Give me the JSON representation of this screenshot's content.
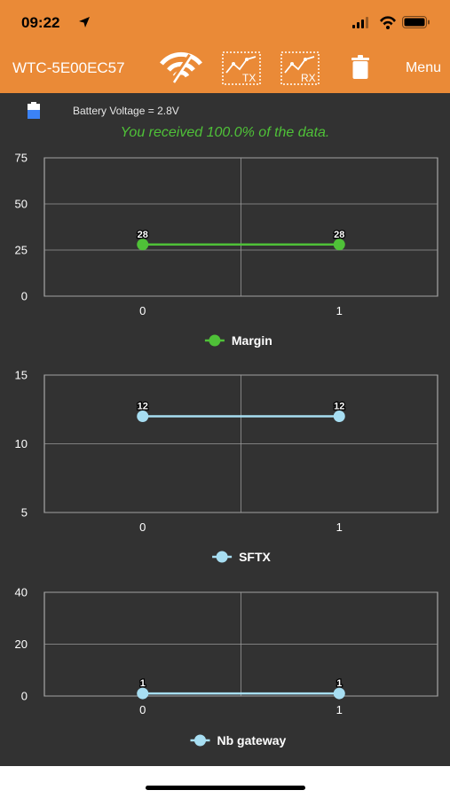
{
  "status_bar": {
    "time": "09:22"
  },
  "header": {
    "device_name": "WTC-5E00EC57",
    "tx_label": "TX",
    "rx_label": "RX",
    "menu_label": "Menu"
  },
  "battery": {
    "text": "Battery Voltage = 2.8V"
  },
  "data_message": "You received 100.0% of the data.",
  "colors": {
    "header": "#ea8a37",
    "background": "#323232",
    "success_text": "#4fc138",
    "margin": "#4fc138",
    "sftx": "#a7def2",
    "gateway": "#a7def2"
  },
  "chart_data": [
    {
      "type": "line",
      "x": [
        0,
        1
      ],
      "series": [
        {
          "name": "Margin",
          "values": [
            28,
            28
          ]
        }
      ],
      "ylim": [
        0,
        75
      ],
      "yticks": [
        0,
        25,
        50,
        75
      ],
      "xticks": [
        0,
        1
      ],
      "data_labels": [
        "28",
        "28"
      ],
      "grid": true,
      "legend": "bottom-center",
      "color": "#4fc138"
    },
    {
      "type": "line",
      "x": [
        0,
        1
      ],
      "series": [
        {
          "name": "SFTX",
          "values": [
            12,
            12
          ]
        }
      ],
      "ylim": [
        5,
        15
      ],
      "yticks": [
        5,
        10,
        15
      ],
      "xticks": [
        0,
        1
      ],
      "data_labels": [
        "12",
        "12"
      ],
      "grid": true,
      "legend": "bottom-center",
      "color": "#a7def2"
    },
    {
      "type": "line",
      "x": [
        0,
        1
      ],
      "series": [
        {
          "name": "Nb gateway",
          "values": [
            1,
            1
          ]
        }
      ],
      "ylim": [
        0,
        40
      ],
      "yticks": [
        0,
        20,
        40
      ],
      "xticks": [
        0,
        1
      ],
      "data_labels": [
        "1",
        "1"
      ],
      "grid": true,
      "legend": "bottom-center",
      "color": "#a7def2"
    }
  ]
}
